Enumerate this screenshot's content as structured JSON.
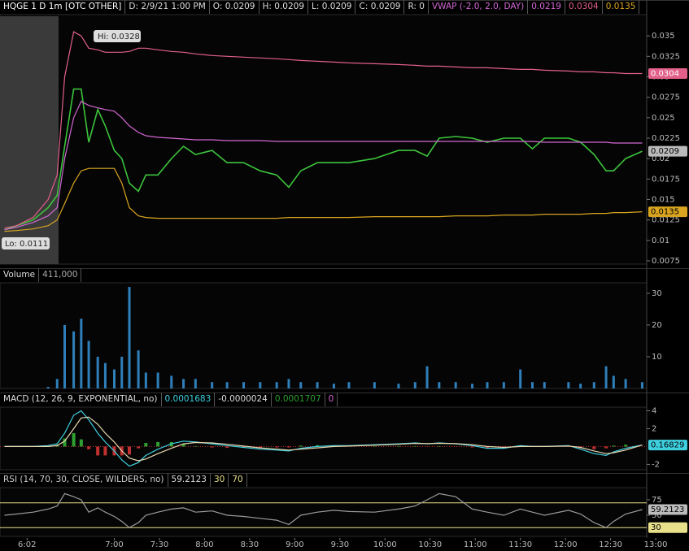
{
  "chart_data": [
    {
      "type": "line",
      "header": [
        {
          "text": "HQGE 1 D 1m [OTC OTHER]",
          "color": "#ffffff"
        },
        {
          "text": "D: 2/9/21 1:00 PM",
          "color": "#dddddd"
        },
        {
          "text": "O: 0.0209",
          "color": "#dddddd"
        },
        {
          "text": "H: 0.0209",
          "color": "#dddddd"
        },
        {
          "text": "L: 0.0209",
          "color": "#dddddd"
        },
        {
          "text": "C: 0.0209",
          "color": "#dddddd"
        },
        {
          "text": "R: 0",
          "color": "#dddddd"
        },
        {
          "text": "VWAP (-2.0, 2.0, DAY)",
          "color": "#d367d3"
        }
      ],
      "annotations": [
        "Hi: 0.0328",
        "Lo: 0.0111"
      ],
      "x": [
        347,
        355,
        366,
        376,
        382,
        387,
        393,
        398,
        403,
        409,
        414,
        420,
        425,
        430,
        436,
        441,
        449,
        458,
        466,
        474,
        485,
        495,
        506,
        517,
        528,
        536,
        544,
        555,
        566,
        576,
        593,
        609,
        620,
        628,
        636,
        647,
        658,
        668,
        679,
        690,
        698,
        706,
        722,
        730,
        739,
        747,
        752,
        760,
        771
      ],
      "xlim": [
        344,
        774
      ],
      "ylim": [
        0.0071,
        0.0374
      ],
      "yticks": [
        0.0075,
        0.01,
        0.0125,
        0.015,
        0.0175,
        0.02,
        0.0225,
        0.025,
        0.0275,
        0.03,
        0.0325,
        0.035
      ],
      "series": [
        {
          "color": "#3cc43c",
          "values": [
            0.0113,
            0.0118,
            0.0125,
            0.014,
            0.0155,
            0.0215,
            0.0285,
            0.0285,
            0.022,
            0.026,
            0.024,
            0.021,
            0.02,
            0.017,
            0.016,
            0.018,
            0.018,
            0.02,
            0.0215,
            0.0205,
            0.021,
            0.0195,
            0.0195,
            0.0185,
            0.018,
            0.0165,
            0.0185,
            0.0195,
            0.0195,
            0.0195,
            0.02,
            0.021,
            0.021,
            0.0203,
            0.0225,
            0.0227,
            0.0225,
            0.022,
            0.0225,
            0.0225,
            0.0212,
            0.0225,
            0.0225,
            0.022,
            0.0205,
            0.0185,
            0.0185,
            0.02,
            0.0209
          ]
        },
        {
          "color": "#d367d3",
          "values": [
            0.0113,
            0.0116,
            0.0122,
            0.013,
            0.014,
            0.02,
            0.025,
            0.027,
            0.0265,
            0.0262,
            0.026,
            0.0258,
            0.025,
            0.024,
            0.0232,
            0.0228,
            0.0226,
            0.0225,
            0.0224,
            0.0223,
            0.0223,
            0.0222,
            0.0222,
            0.0222,
            0.0221,
            0.0221,
            0.0221,
            0.0221,
            0.0221,
            0.0221,
            0.0221,
            0.0221,
            0.0221,
            0.0221,
            0.0221,
            0.0221,
            0.0221,
            0.0221,
            0.0221,
            0.0221,
            0.0221,
            0.022,
            0.022,
            0.022,
            0.022,
            0.022,
            0.0219,
            0.0219,
            0.0219
          ]
        },
        {
          "color": "#e2608a",
          "values": [
            0.0115,
            0.0118,
            0.0128,
            0.015,
            0.018,
            0.03,
            0.0355,
            0.035,
            0.0335,
            0.0333,
            0.033,
            0.033,
            0.033,
            0.0331,
            0.0335,
            0.0335,
            0.0333,
            0.0331,
            0.033,
            0.0328,
            0.0326,
            0.0325,
            0.0324,
            0.0323,
            0.0322,
            0.0321,
            0.032,
            0.0319,
            0.0318,
            0.0317,
            0.0316,
            0.0315,
            0.0314,
            0.0313,
            0.0313,
            0.0312,
            0.0311,
            0.0311,
            0.031,
            0.0309,
            0.0309,
            0.0308,
            0.0307,
            0.0306,
            0.0306,
            0.0305,
            0.0305,
            0.0304,
            0.0304
          ]
        },
        {
          "color": "#d9a520",
          "values": [
            0.0111,
            0.0112,
            0.0114,
            0.0118,
            0.0125,
            0.0145,
            0.017,
            0.0185,
            0.0188,
            0.0188,
            0.0188,
            0.0188,
            0.017,
            0.014,
            0.013,
            0.0128,
            0.0127,
            0.0127,
            0.0127,
            0.0127,
            0.0127,
            0.0127,
            0.0127,
            0.0127,
            0.0127,
            0.0128,
            0.0128,
            0.0128,
            0.0128,
            0.0128,
            0.0129,
            0.0129,
            0.0129,
            0.0129,
            0.0129,
            0.013,
            0.013,
            0.013,
            0.0131,
            0.0131,
            0.0131,
            0.0132,
            0.0132,
            0.0132,
            0.0133,
            0.0133,
            0.0134,
            0.0134,
            0.0135
          ]
        }
      ]
    },
    {
      "type": "bar",
      "header": [
        {
          "text": "Volume",
          "color": "#dddddd"
        },
        {
          "text": "411,000",
          "color": "#aaaaaa"
        }
      ],
      "x": [
        347,
        355,
        366,
        376,
        382,
        387,
        393,
        398,
        403,
        409,
        414,
        420,
        425,
        430,
        436,
        441,
        449,
        458,
        466,
        474,
        485,
        495,
        506,
        517,
        528,
        536,
        544,
        555,
        566,
        576,
        593,
        609,
        620,
        628,
        636,
        647,
        658,
        668,
        679,
        690,
        698,
        706,
        722,
        730,
        739,
        747,
        752,
        760,
        771
      ],
      "xlim": [
        344,
        774
      ],
      "ylim": [
        0,
        33.3
      ],
      "yticks": [
        10,
        20,
        30
      ],
      "color": "#2f7fba",
      "values": [
        0,
        0,
        0,
        0.5,
        3,
        20,
        18,
        22,
        15,
        10,
        8,
        6,
        10,
        32,
        12,
        5,
        5,
        4,
        3,
        3,
        2,
        2,
        2,
        2,
        2,
        3,
        2,
        2,
        1.5,
        2,
        2,
        1.5,
        2,
        7,
        2,
        2,
        1.5,
        2,
        2,
        6,
        2,
        2,
        2,
        1.5,
        2,
        7,
        4,
        3,
        2
      ]
    },
    {
      "type": "line",
      "header": [
        {
          "text": "MACD (12, 26, 9, EXPONENTIAL, no)",
          "color": "#dddddd"
        },
        {
          "text": "0.0001683",
          "color": "#3fd0e0"
        },
        {
          "text": "-0.0000024",
          "color": "#dddddd"
        },
        {
          "text": "0.0001707",
          "color": "#2fa02f"
        },
        {
          "text": "0",
          "color": "#d367d3"
        }
      ],
      "x": [
        347,
        355,
        366,
        376,
        382,
        387,
        393,
        398,
        403,
        409,
        414,
        420,
        425,
        430,
        436,
        441,
        449,
        458,
        466,
        474,
        485,
        495,
        506,
        517,
        528,
        536,
        544,
        555,
        566,
        576,
        593,
        609,
        620,
        628,
        636,
        647,
        658,
        668,
        679,
        690,
        698,
        706,
        722,
        730,
        739,
        747,
        752,
        760,
        771
      ],
      "xlim": [
        344,
        774
      ],
      "ylim": [
        -2.6,
        4.5
      ],
      "yticks": [
        -2,
        2,
        4
      ],
      "series": [
        {
          "color": "#3fd0e0",
          "values": [
            0,
            0,
            0,
            0.1,
            0.3,
            1.5,
            3.5,
            4.0,
            3.0,
            1.5,
            0.5,
            -0.5,
            -1.5,
            -2.2,
            -1.8,
            -1.0,
            -0.3,
            0.3,
            0.6,
            0.5,
            0.3,
            0.1,
            -0.1,
            -0.3,
            -0.4,
            -0.5,
            -0.2,
            0,
            0.1,
            0.1,
            0.2,
            0.3,
            0.4,
            0.3,
            0.4,
            0.3,
            0.1,
            -0.2,
            -0.2,
            0.1,
            0,
            0,
            0.1,
            -0.3,
            -0.8,
            -1.0,
            -0.6,
            -0.2,
            0.16829
          ]
        },
        {
          "color": "#e8d8b0",
          "values": [
            0,
            0,
            0,
            0,
            0.1,
            0.6,
            2.0,
            3.2,
            3.3,
            2.5,
            1.5,
            0.5,
            -0.5,
            -1.3,
            -1.6,
            -1.4,
            -0.8,
            -0.2,
            0.3,
            0.45,
            0.4,
            0.25,
            0.05,
            -0.15,
            -0.3,
            -0.4,
            -0.3,
            -0.15,
            0,
            0.05,
            0.15,
            0.25,
            0.35,
            0.32,
            0.36,
            0.32,
            0.2,
            0,
            -0.1,
            0,
            0,
            0,
            0.05,
            -0.1,
            -0.5,
            -0.8,
            -0.7,
            -0.4,
            0.17
          ]
        }
      ],
      "histogram": {
        "up_color": "#2fa02f",
        "down_color": "#c03030",
        "values": [
          0,
          0,
          0,
          0.1,
          0.2,
          0.9,
          1.5,
          0.8,
          -0.3,
          -1.0,
          -1.0,
          -1.0,
          -1.0,
          -0.9,
          -0.2,
          0.4,
          0.5,
          0.5,
          0.3,
          0.05,
          -0.1,
          -0.15,
          -0.15,
          -0.15,
          -0.1,
          -0.1,
          0.1,
          0.15,
          0.1,
          0.05,
          0.05,
          0.05,
          0.05,
          -0.02,
          0.04,
          -0.02,
          -0.1,
          -0.2,
          -0.1,
          0.1,
          0,
          0,
          0.05,
          -0.2,
          -0.3,
          -0.2,
          0.1,
          0.2,
          0
        ]
      }
    },
    {
      "type": "line",
      "header": [
        {
          "text": "RSI (14, 70, 30, CLOSE, WILDERS, no)",
          "color": "#cccccc"
        },
        {
          "text": "59.2123",
          "color": "#dddddd"
        }
      ],
      "levels": [
        {
          "value": 30,
          "color": "#e8e08a"
        },
        {
          "value": 70,
          "color": "#e8e08a"
        }
      ],
      "x": [
        347,
        355,
        366,
        376,
        382,
        387,
        393,
        398,
        403,
        409,
        414,
        420,
        425,
        430,
        436,
        441,
        449,
        458,
        466,
        474,
        485,
        495,
        506,
        517,
        528,
        536,
        544,
        555,
        566,
        576,
        593,
        609,
        620,
        628,
        636,
        647,
        658,
        668,
        679,
        690,
        698,
        706,
        722,
        730,
        739,
        747,
        752,
        760,
        771
      ],
      "xlim": [
        344,
        774
      ],
      "ylim": [
        15.8,
        94.7
      ],
      "yticks": [
        50,
        75
      ],
      "xticks": [
        {
          "value": 362,
          "label": "6:02"
        },
        {
          "value": 420,
          "label": "7:00"
        },
        {
          "value": 450,
          "label": "7:30"
        },
        {
          "value": 480,
          "label": "8:00"
        },
        {
          "value": 510,
          "label": "8:30"
        },
        {
          "value": 540,
          "label": "9:00"
        },
        {
          "value": 570,
          "label": "9:30"
        },
        {
          "value": 600,
          "label": "10:00"
        },
        {
          "value": 630,
          "label": "10:30"
        },
        {
          "value": 660,
          "label": "11:00"
        },
        {
          "value": 690,
          "label": "11:30"
        },
        {
          "value": 720,
          "label": "12:00"
        },
        {
          "value": 750,
          "label": "12:30"
        },
        {
          "value": 780,
          "label": "13:00"
        }
      ],
      "series": [
        {
          "color": "#9a9a9a",
          "values": [
            50,
            52,
            55,
            60,
            65,
            85,
            80,
            75,
            55,
            62,
            55,
            48,
            40,
            30,
            38,
            50,
            55,
            60,
            62,
            55,
            57,
            50,
            48,
            45,
            42,
            35,
            50,
            55,
            58,
            56,
            55,
            60,
            65,
            75,
            85,
            80,
            60,
            55,
            50,
            60,
            55,
            50,
            58,
            52,
            38,
            30,
            40,
            52,
            59.2123
          ]
        }
      ]
    }
  ]
}
